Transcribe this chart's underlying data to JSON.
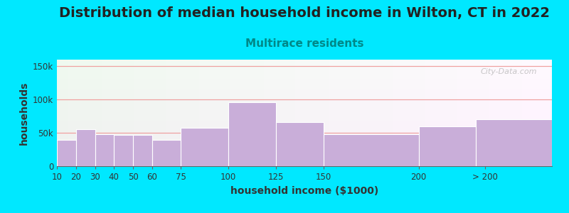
{
  "title": "Distribution of median household income in Wilton, CT in 2022",
  "subtitle": "Multirace residents",
  "xlabel": "household income ($1000)",
  "ylabel": "households",
  "bin_edges": [
    10,
    20,
    30,
    40,
    50,
    60,
    75,
    100,
    125,
    150,
    200,
    230,
    270
  ],
  "bar_values": [
    40000,
    55000,
    48000,
    47000,
    47000,
    39000,
    58000,
    96000,
    66000,
    48000,
    60000,
    70000
  ],
  "xtick_positions": [
    10,
    20,
    30,
    40,
    50,
    60,
    75,
    100,
    125,
    150,
    200,
    235
  ],
  "xtick_labels": [
    "10",
    "20",
    "30",
    "40",
    "50",
    "60",
    "75",
    "100",
    "125",
    "150",
    "200",
    "> 200"
  ],
  "bar_color": "#c9aed9",
  "bar_edge_color": "#ffffff",
  "ylim": [
    0,
    160000
  ],
  "ytick_values": [
    0,
    50000,
    100000,
    150000
  ],
  "ytick_labels": [
    "0",
    "50k",
    "100k",
    "150k"
  ],
  "background_outer": "#00e8ff",
  "title_fontsize": 14,
  "subtitle_fontsize": 11,
  "subtitle_color": "#008888",
  "axis_label_fontsize": 10,
  "tick_fontsize": 8.5,
  "watermark_text": "City-Data.com",
  "watermark_color": "#aaaaaa",
  "grid_color": "#f0a0a0",
  "xlim_min": 10,
  "xlim_max": 270
}
